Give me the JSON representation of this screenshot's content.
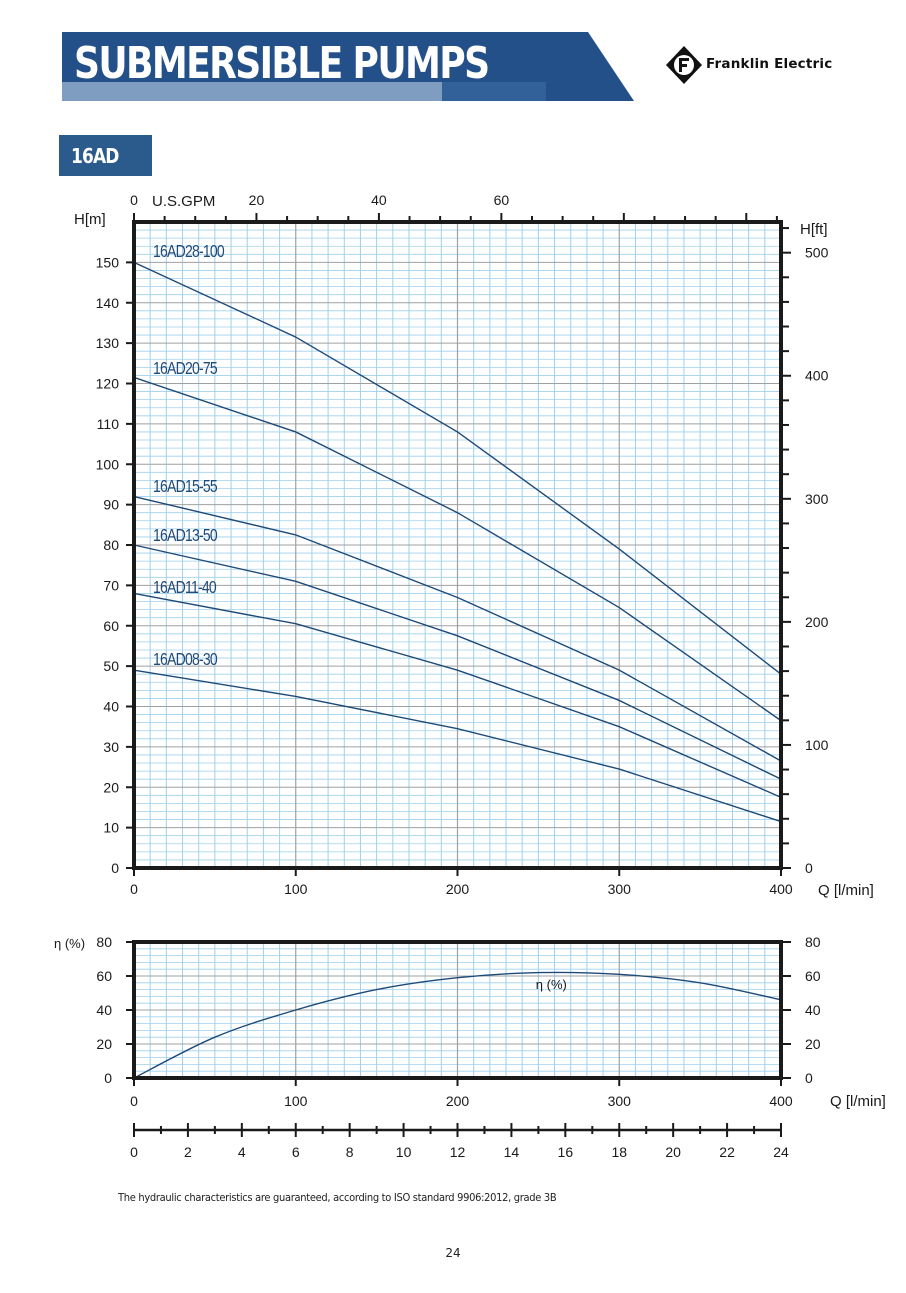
{
  "header": {
    "title": "SUBMERSIBLE PUMPS",
    "brand": "Franklin Electric",
    "colors": {
      "band_dark": "#24508a",
      "band_light": "#7f9cc1",
      "band_mid": "#3e6ea6"
    }
  },
  "model_tab": {
    "label": "16AD",
    "color": "#2b5a8d"
  },
  "footnote": "The hydraulic characteristics are guaranteed, according to ISO standard 9906:2012, grade 3B",
  "page_number": "24",
  "chart_data": [
    {
      "type": "line",
      "title": "",
      "xlabel": "Q [l/min]",
      "ylabel": "H[m]",
      "ylabel_right": "H[ft]",
      "xlabel_top": "U.S.GPM",
      "xlim": [
        0,
        400
      ],
      "ylim": [
        0,
        160
      ],
      "x_ticks": [
        "0",
        "100",
        "200",
        "300",
        "400"
      ],
      "y_ticks": [
        "0",
        "10",
        "20",
        "30",
        "40",
        "50",
        "60",
        "70",
        "80",
        "90",
        "100",
        "110",
        "120",
        "130",
        "140",
        "150"
      ],
      "top_ticks": [
        "0",
        "20",
        "40",
        "60"
      ],
      "right_ticks": [
        "0",
        "100",
        "200",
        "300",
        "400",
        "500"
      ],
      "grid": true,
      "colors": {
        "line": "#1e4a78",
        "grid_major": "#a0a0a0",
        "grid_minor": "#9fd0ee",
        "frame": "#1a1a1a"
      },
      "series": [
        {
          "name": "16AD28-100",
          "x": [
            0,
            100,
            200,
            300,
            400
          ],
          "y": [
            150,
            131.5,
            108,
            79,
            48
          ]
        },
        {
          "name": "16AD20-75",
          "x": [
            0,
            100,
            200,
            300,
            400
          ],
          "y": [
            121.5,
            108,
            88,
            64.5,
            36.5
          ]
        },
        {
          "name": "16AD15-55",
          "x": [
            0,
            100,
            200,
            300,
            400
          ],
          "y": [
            92,
            82.5,
            67,
            49,
            26.5
          ]
        },
        {
          "name": "16AD13-50",
          "x": [
            0,
            100,
            200,
            300,
            400
          ],
          "y": [
            80,
            71,
            57.5,
            41.5,
            22
          ]
        },
        {
          "name": "16AD11-40",
          "x": [
            0,
            100,
            200,
            300,
            400
          ],
          "y": [
            68,
            60.5,
            49,
            35,
            17.5
          ]
        },
        {
          "name": "16AD08-30",
          "x": [
            0,
            100,
            200,
            300,
            400
          ],
          "y": [
            49,
            42.5,
            34.5,
            24.5,
            11.5
          ]
        }
      ]
    },
    {
      "type": "line",
      "title": "",
      "xlabel": "Q [l/min]",
      "ylabel": "η (%)",
      "xlim": [
        0,
        400
      ],
      "ylim": [
        0,
        80
      ],
      "x_ticks": [
        "0",
        "100",
        "200",
        "300",
        "400"
      ],
      "y_ticks": [
        "0",
        "20",
        "40",
        "60",
        "80"
      ],
      "right_ticks": [
        "0",
        "20",
        "40",
        "60",
        "80"
      ],
      "bottom_scale_ticks": [
        "0",
        "2",
        "4",
        "6",
        "8",
        "10",
        "12",
        "14",
        "16",
        "18",
        "20",
        "22",
        "24"
      ],
      "grid": true,
      "series": [
        {
          "name": "η (%)",
          "x": [
            0,
            50,
            100,
            150,
            200,
            250,
            300,
            350,
            400
          ],
          "y": [
            0,
            24,
            40,
            52,
            59,
            62,
            61,
            56,
            46
          ]
        }
      ]
    }
  ]
}
